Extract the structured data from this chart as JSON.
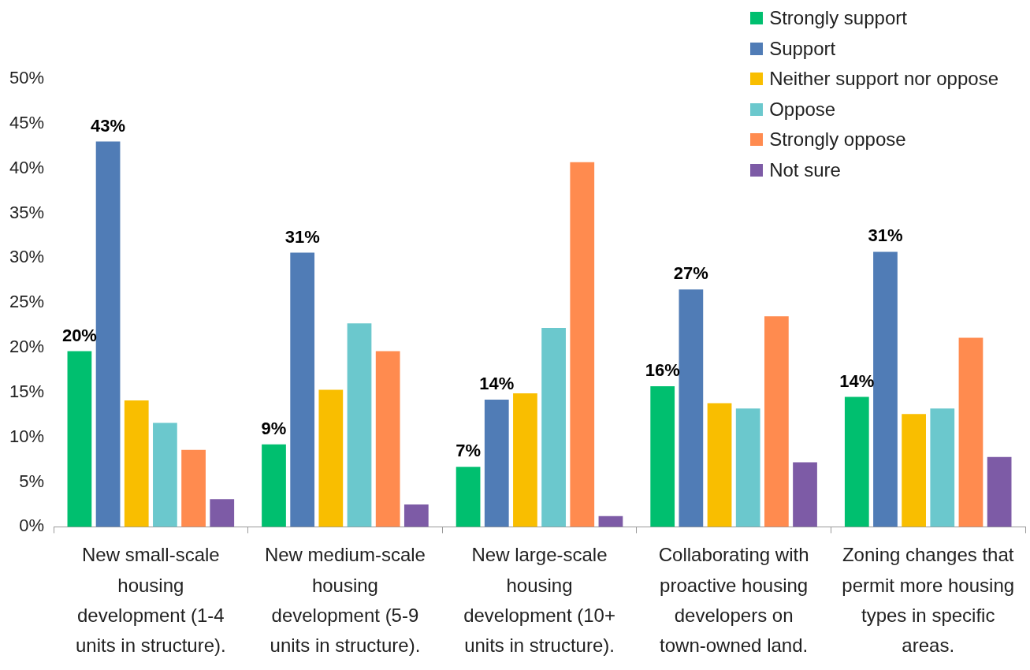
{
  "chart_data": {
    "type": "bar",
    "categories": [
      "New small-scale housing development (1-4 units in structure).",
      "New medium-scale housing development (5-9 units in structure).",
      "New large-scale housing development (10+ units in structure).",
      "Collaborating with proactive housing developers on town-owned land.",
      "Zoning changes that permit more housing types in specific areas."
    ],
    "series": [
      {
        "name": "Strongly support",
        "color": "#00bf6f",
        "values": [
          19.6,
          9.2,
          6.7,
          15.7,
          14.5
        ],
        "value_labels": [
          "20%",
          "9%",
          "7%",
          "16%",
          "14%"
        ]
      },
      {
        "name": "Support",
        "color": "#507cb6",
        "values": [
          43,
          30.6,
          14.2,
          26.5,
          30.7
        ],
        "value_labels": [
          "43%",
          "31%",
          "14%",
          "27%",
          "31%"
        ]
      },
      {
        "name": "Neither support nor oppose",
        "color": "#f9be00",
        "values": [
          14.1,
          15.3,
          14.9,
          13.8,
          12.6
        ]
      },
      {
        "name": "Oppose",
        "color": "#6bc8cd",
        "values": [
          11.6,
          22.7,
          22.2,
          13.2,
          13.2
        ]
      },
      {
        "name": "Strongly oppose",
        "color": "#ff8b4f",
        "values": [
          8.6,
          19.6,
          40.7,
          23.5,
          21.1
        ]
      },
      {
        "name": "Not sure",
        "color": "#7d5ba6",
        "values": [
          3.1,
          2.5,
          1.2,
          7.2,
          7.8
        ]
      }
    ],
    "ylim": [
      0,
      50
    ],
    "yticks": [
      {
        "value": 0,
        "label": "0%"
      },
      {
        "value": 5,
        "label": "5%"
      },
      {
        "value": 10,
        "label": "10%"
      },
      {
        "value": 15,
        "label": "15%"
      },
      {
        "value": 20,
        "label": "20%"
      },
      {
        "value": 25,
        "label": "25%"
      },
      {
        "value": 30,
        "label": "30%"
      },
      {
        "value": 35,
        "label": "35%"
      },
      {
        "value": 40,
        "label": "40%"
      },
      {
        "value": 45,
        "label": "45%"
      },
      {
        "value": 50,
        "label": "50%"
      }
    ],
    "grid": false,
    "legend": "top right"
  }
}
